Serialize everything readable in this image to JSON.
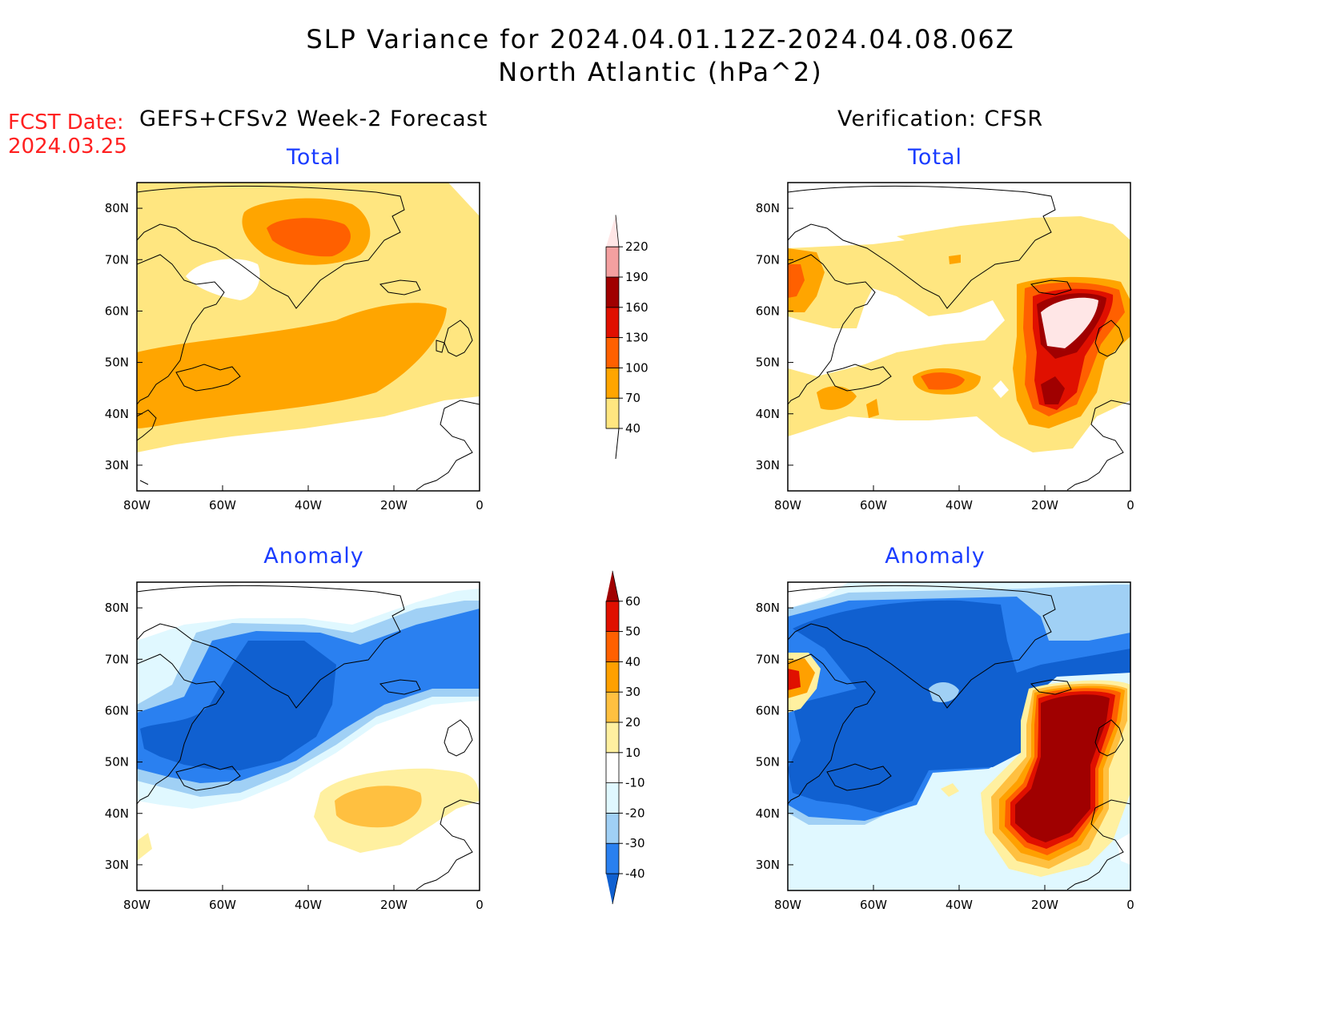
{
  "title_line1": "SLP Variance for 2024.04.01.12Z-2024.04.08.06Z",
  "title_line2": "North Atlantic (hPa^2)",
  "fcst_label": "FCST Date:",
  "fcst_date": "2024.03.25",
  "left_heading": "GEFS+CFSv2 Week-2 Forecast",
  "right_heading": "Verification: CFSR",
  "panels": [
    {
      "id": "forecast-total",
      "subtitle": "Total"
    },
    {
      "id": "verification-total",
      "subtitle": "Total"
    },
    {
      "id": "forecast-anomaly",
      "subtitle": "Anomaly"
    },
    {
      "id": "verification-anomaly",
      "subtitle": "Anomaly"
    }
  ],
  "axes": {
    "lat_labels": [
      "30N",
      "40N",
      "50N",
      "60N",
      "70N",
      "80N"
    ],
    "lat_values": [
      30,
      40,
      50,
      60,
      70,
      80
    ],
    "lon_labels": [
      "80W",
      "60W",
      "40W",
      "20W",
      "0"
    ],
    "lon_values": [
      -80,
      -60,
      -40,
      -20,
      0
    ],
    "lat_range": [
      25,
      85
    ],
    "lon_range": [
      -80,
      0
    ]
  },
  "total_colorbar": {
    "labels": [
      "40",
      "70",
      "100",
      "130",
      "160",
      "190",
      "220"
    ],
    "colors": [
      "#ffe680",
      "#ffa500",
      "#ff6000",
      "#e01000",
      "#a00000",
      "#f4a0a0",
      "#ffe6e6"
    ]
  },
  "anomaly_colorbar": {
    "labels": [
      "-40",
      "-30",
      "-20",
      "-10",
      "10",
      "20",
      "30",
      "40",
      "50",
      "60"
    ],
    "colors": [
      "#1060d0",
      "#2a80f0",
      "#a0d0f5",
      "#e0f8ff",
      "#ffffff",
      "#fff0a0",
      "#ffc040",
      "#ffa000",
      "#ff6000",
      "#e01000",
      "#a00000"
    ]
  }
}
